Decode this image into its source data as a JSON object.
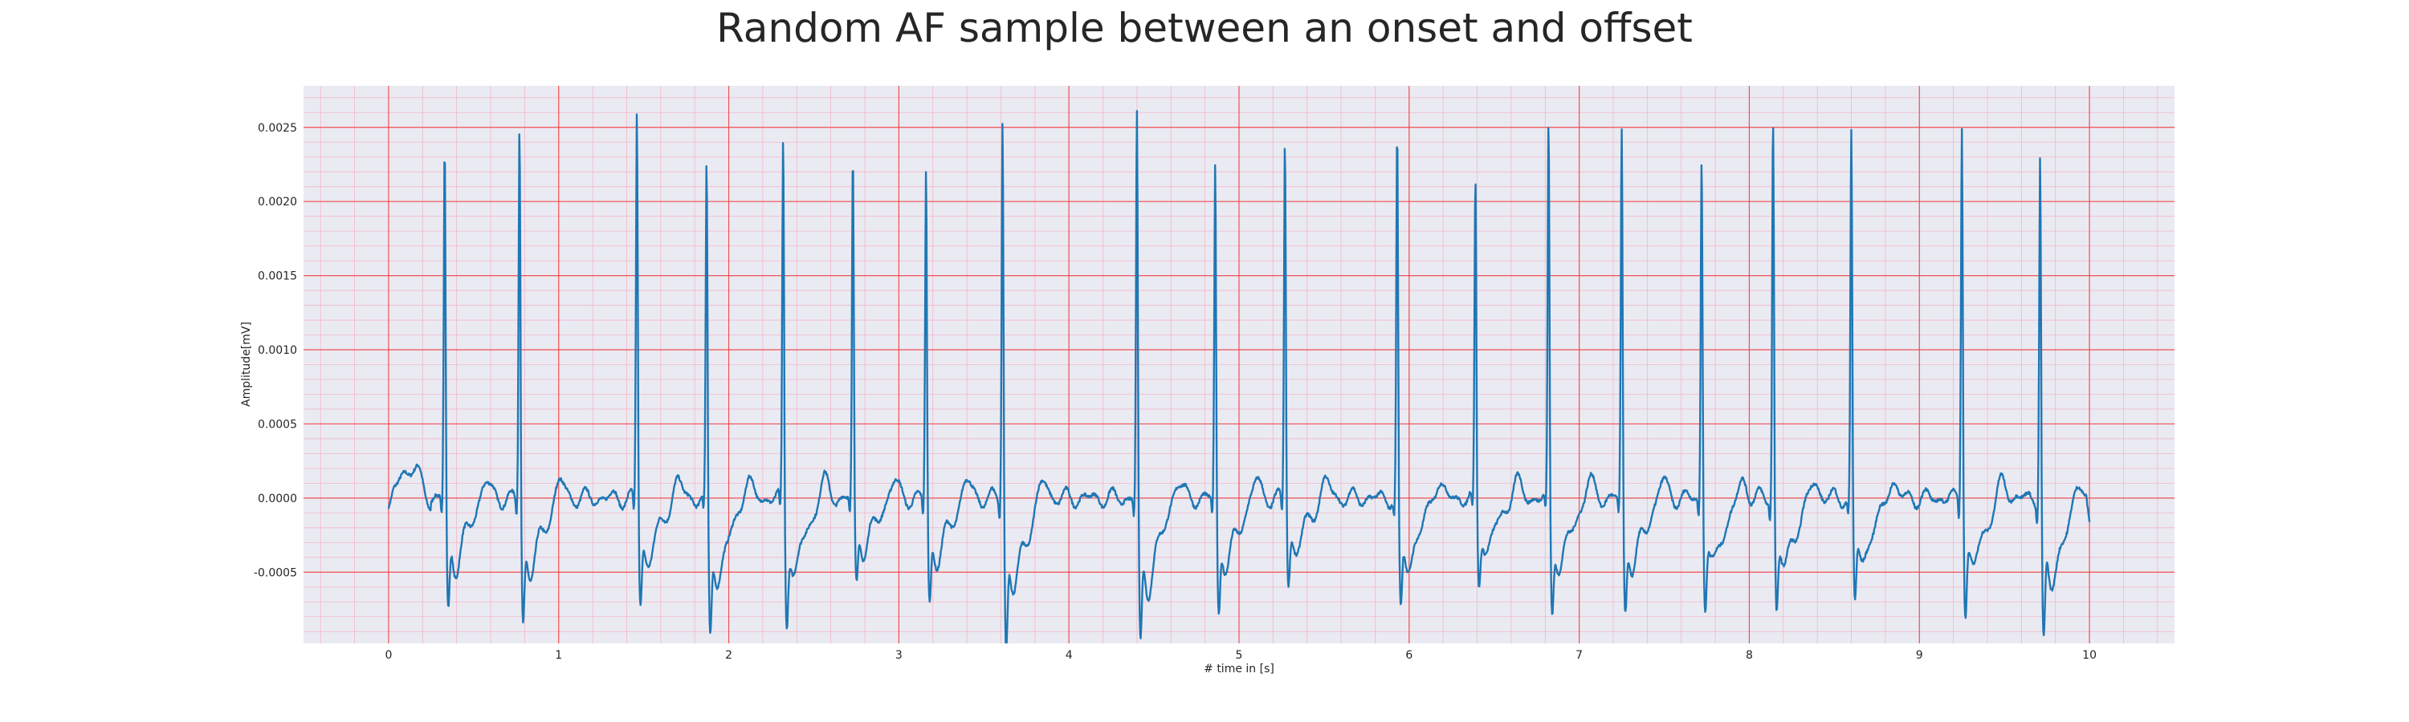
{
  "chart_data": {
    "type": "line",
    "title": "Random AF sample between an onset and offset",
    "xlabel": "# time in [s]",
    "ylabel": "Amplitude[mV]",
    "xlim": [
      -0.5,
      10.5
    ],
    "ylim": [
      -0.00098,
      0.00278
    ],
    "x_ticks": [
      0,
      1,
      2,
      3,
      4,
      5,
      6,
      7,
      8,
      9,
      10
    ],
    "x_tick_labels": [
      "0",
      "1",
      "2",
      "3",
      "4",
      "5",
      "6",
      "7",
      "8",
      "9",
      "10"
    ],
    "y_ticks": [
      -0.0005,
      0.0,
      0.0005,
      0.001,
      0.0015,
      0.002,
      0.0025
    ],
    "y_tick_labels": [
      "-0.0005",
      "0.0000",
      "0.0005",
      "0.0010",
      "0.0015",
      "0.0020",
      "0.0025"
    ],
    "grid": true,
    "minor_grid": true,
    "series": [
      {
        "color": "#1f77b4",
        "r_peaks": [
          {
            "t": 0.33,
            "amp": 0.0024,
            "trough": -0.0006
          },
          {
            "t": 0.77,
            "amp": 0.00252,
            "trough": -0.00065
          },
          {
            "t": 1.46,
            "amp": 0.0026,
            "trough": -0.00055
          },
          {
            "t": 1.87,
            "amp": 0.00223,
            "trough": -0.00072
          },
          {
            "t": 2.32,
            "amp": 0.00243,
            "trough": -0.00065
          },
          {
            "t": 2.73,
            "amp": 0.00231,
            "trough": -0.00045
          },
          {
            "t": 3.16,
            "amp": 0.00221,
            "trough": -0.00055
          },
          {
            "t": 3.61,
            "amp": 0.00257,
            "trough": -0.0008
          },
          {
            "t": 4.4,
            "amp": 0.00258,
            "trough": -0.00078
          },
          {
            "t": 4.86,
            "amp": 0.00224,
            "trough": -0.0006
          },
          {
            "t": 5.27,
            "amp": 0.00242,
            "trough": -0.00045
          },
          {
            "t": 5.93,
            "amp": 0.00246,
            "trough": -0.0006
          },
          {
            "t": 6.39,
            "amp": 0.00215,
            "trough": -0.00045
          },
          {
            "t": 6.82,
            "amp": 0.00252,
            "trough": -0.0006
          },
          {
            "t": 7.25,
            "amp": 0.00245,
            "trough": -0.0006
          },
          {
            "t": 7.72,
            "amp": 0.00233,
            "trough": -0.00058
          },
          {
            "t": 8.14,
            "amp": 0.00262,
            "trough": -0.0006
          },
          {
            "t": 8.6,
            "amp": 0.00245,
            "trough": -0.00055
          },
          {
            "t": 9.25,
            "amp": 0.00255,
            "trough": -0.0006
          },
          {
            "t": 9.71,
            "amp": 0.00233,
            "trough": -0.00077
          }
        ],
        "start": {
          "t": 0.0,
          "value": -0.0001
        },
        "end": {
          "t": 10.0,
          "value": -0.0003
        }
      }
    ]
  }
}
